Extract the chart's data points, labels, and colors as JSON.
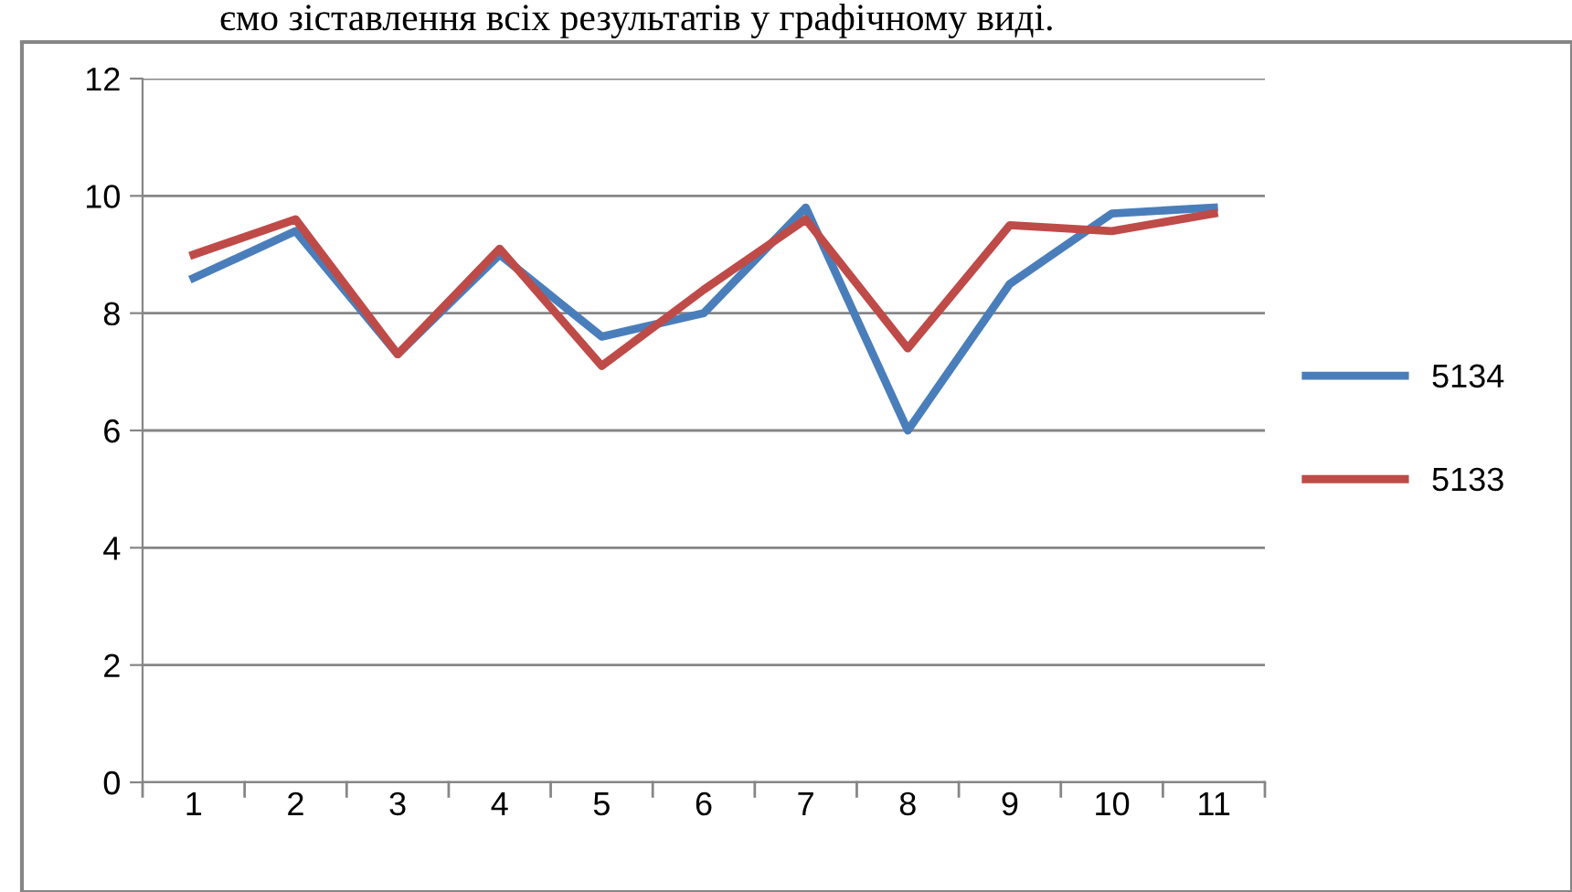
{
  "chart_data": {
    "type": "line",
    "annotations": [
      "ємо зіставлення всіх результатів у графічному виді."
    ],
    "categories": [
      "1",
      "2",
      "3",
      "4",
      "5",
      "6",
      "7",
      "8",
      "9",
      "10",
      "11"
    ],
    "series": [
      {
        "name": "5134",
        "color": "#4a7ebb",
        "values": [
          8.6,
          9.4,
          7.3,
          9.0,
          7.6,
          8.0,
          9.8,
          6.0,
          8.5,
          9.7,
          9.8
        ]
      },
      {
        "name": "5133",
        "color": "#be4b48",
        "values": [
          9.0,
          9.6,
          7.3,
          9.1,
          7.1,
          8.4,
          9.6,
          7.4,
          9.5,
          9.4,
          9.7
        ]
      }
    ],
    "ylim": [
      0,
      12
    ],
    "yticks": [
      0,
      2,
      4,
      6,
      8,
      10,
      12
    ],
    "grid": "y",
    "legend": "right",
    "marker": "none",
    "line_style": "solid"
  }
}
